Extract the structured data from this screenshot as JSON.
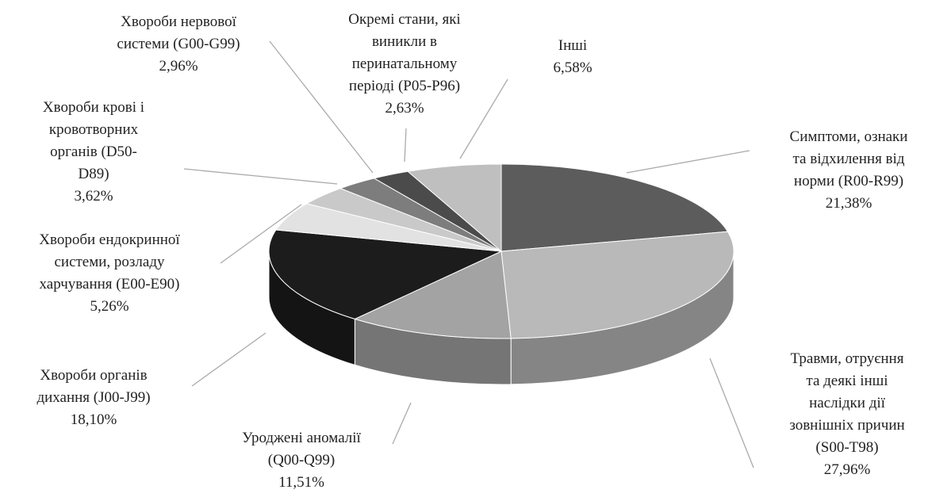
{
  "chart_data": {
    "type": "pie",
    "categories": [
      "Симптоми, ознаки\nта відхилення від\nнорми (R00-R99)",
      "Травми, отруєння\nта деякі інші\nнаслідки дії\nзовнішніх причин\n(S00-T98)",
      "Уроджені аномалії\n(Q00-Q99)",
      "Хвороби органів\nдихання  (J00-J99)",
      "Хвороби ендокринної\nсистеми, розладу\nхарчування (E00-E90)",
      "Хвороби крові і\nкровотворних\nорганів    (D50-\nD89)",
      "Хвороби нервової\nсистеми (G00-G99)",
      "Окремі стани, які\nвиникли в\nперинатальному\nперіоді (P05-P96)",
      "Інші"
    ],
    "values": [
      21.38,
      27.96,
      11.51,
      18.1,
      5.26,
      3.62,
      2.96,
      2.63,
      6.58
    ],
    "value_labels": [
      "21,38%",
      "27,96%",
      "11,51%",
      "18,10%",
      "5,26%",
      "3,62%",
      "2,96%",
      "2,63%",
      "6,58%"
    ],
    "colors": [
      "#5c5c5c",
      "#b9b9b9",
      "#a3a3a3",
      "#1c1c1c",
      "#e2e2e2",
      "#c9c9c9",
      "#7d7d7d",
      "#4b4b4b",
      "#bfbfbf"
    ]
  }
}
